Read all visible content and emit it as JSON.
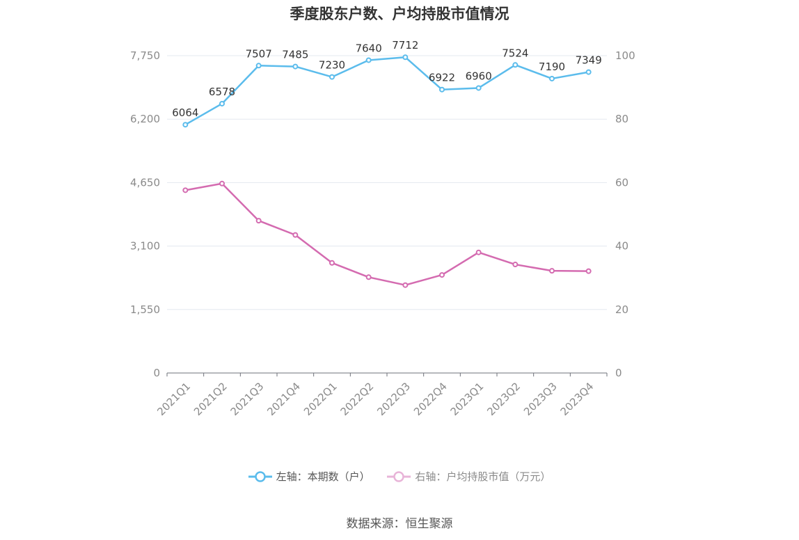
{
  "chart_data": {
    "type": "line",
    "title": "季度股东户数、户均持股市值情况",
    "categories": [
      "2021Q1",
      "2021Q2",
      "2021Q3",
      "2021Q4",
      "2022Q1",
      "2022Q2",
      "2022Q3",
      "2022Q4",
      "2023Q1",
      "2023Q2",
      "2023Q3",
      "2023Q4"
    ],
    "left_axis": {
      "ylim": [
        0,
        7750
      ],
      "ticks": [
        "0",
        "1,550",
        "3,100",
        "4,650",
        "6,200",
        "7,750"
      ],
      "tick_values": [
        0,
        1550,
        3100,
        4650,
        6200,
        7750
      ]
    },
    "right_axis": {
      "ylim": [
        0,
        100
      ],
      "ticks": [
        "0",
        "20",
        "40",
        "60",
        "80",
        "100"
      ],
      "tick_values": [
        0,
        20,
        40,
        60,
        80,
        100
      ]
    },
    "series": [
      {
        "name": "左轴：本期数（户）",
        "axis": "left",
        "color": "#5bbcec",
        "values": [
          6064,
          6578,
          7507,
          7485,
          7230,
          7640,
          7712,
          6922,
          6960,
          7524,
          7190,
          7349
        ],
        "labels": [
          "6064",
          "6578",
          "7507",
          "7485",
          "7230",
          "7640",
          "7712",
          "6922",
          "6960",
          "7524",
          "7190",
          "7349"
        ]
      },
      {
        "name": "右轴：户均持股市值（万元）",
        "axis": "right",
        "color": "#d46bb0",
        "values": [
          57.6,
          59.7,
          48.0,
          43.5,
          34.7,
          30.2,
          27.7,
          30.9,
          38.0,
          34.2,
          32.2,
          32.1
        ]
      }
    ],
    "grid": true,
    "legend_position": "bottom"
  },
  "source": "数据来源：恒生聚源"
}
